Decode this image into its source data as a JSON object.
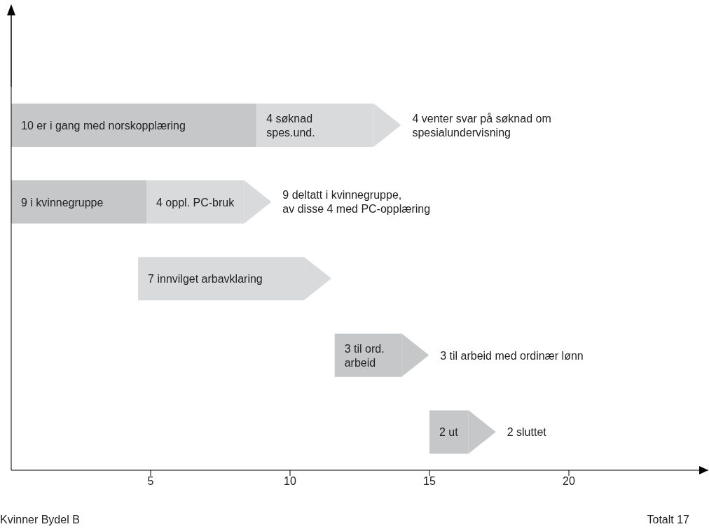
{
  "chart_data": {
    "type": "bar",
    "orientation": "horizontal",
    "categories": [
      null,
      null,
      null,
      null,
      null
    ],
    "series": [
      {
        "colors": [
          "#c6c7c9",
          "#c6c7c9",
          "#d9dadc",
          "#c6c7c9",
          "#c6c7c9"
        ],
        "base": [
          0,
          0,
          4.55,
          11.6,
          15.0
        ],
        "values": [
          8.8,
          4.85,
          5.95,
          2.4,
          1.4
        ]
      },
      {
        "color": "#d9dadc",
        "base": [
          8.8,
          4.85,
          null,
          null,
          null
        ],
        "values": [
          4.2,
          3.5,
          null,
          null,
          null
        ]
      }
    ],
    "xlim": [
      0,
      25
    ],
    "xticks": [
      5,
      10,
      15,
      20
    ],
    "grid": false,
    "legend": false,
    "annotations": [
      "10 er i gang med norskopplæring",
      "4 søknad\nspes.und.",
      "9 i kvinnegruppe",
      "4 oppl. PC-bruk",
      "7 innvilget arbavklaring",
      "3 til ord.\narbeid",
      "2 ut",
      "4 venter svar på søknad om\nspesialundervisning",
      "9 deltatt i kvinnegruppe,\nav disse 4 med PC-opplæring",
      "3 til arbeid med ordinær lønn",
      "2 sluttet",
      "Kvinner Bydel B",
      "Totalt 17"
    ]
  }
}
